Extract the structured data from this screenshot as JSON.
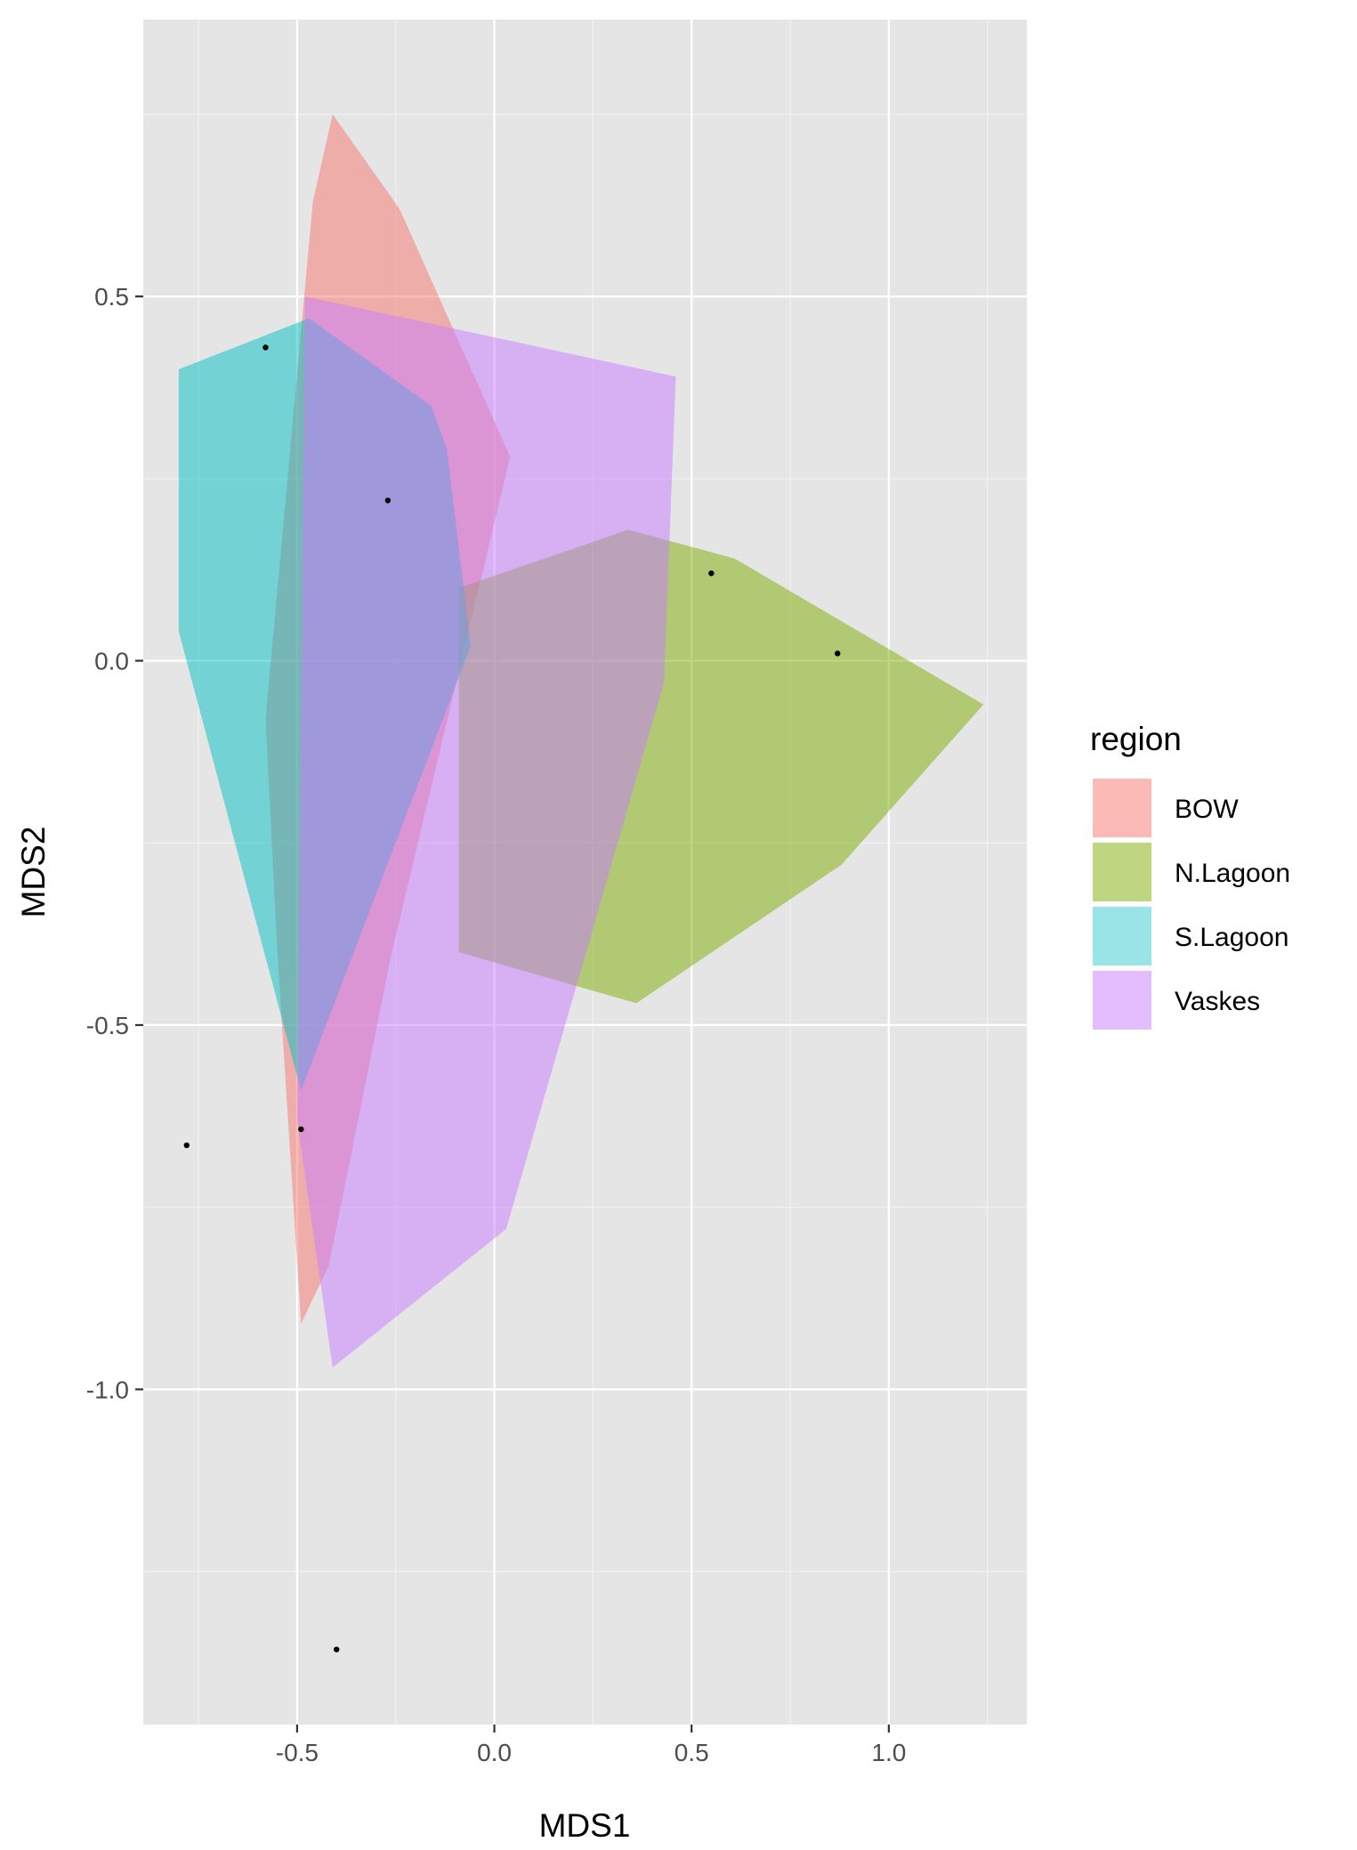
{
  "chart_data": {
    "type": "scatter",
    "xlabel": "MDS1",
    "ylabel": "MDS2",
    "xlim": [
      -0.89,
      1.35
    ],
    "ylim": [
      -1.46,
      0.88
    ],
    "x_ticks": [
      -0.5,
      0.0,
      0.5,
      1.0
    ],
    "x_tick_labels": [
      "-0.5",
      "0.0",
      "0.5",
      "1.0"
    ],
    "y_ticks": [
      0.5,
      0.0,
      -0.5,
      -1.0
    ],
    "y_tick_labels": [
      "0.5",
      "0.0",
      "-0.5",
      "-1.0"
    ],
    "grid": true,
    "background": "#e5e5e5",
    "legend": {
      "title": "region",
      "position": "right",
      "entries": [
        "BOW",
        "N.Lagoon",
        "S.Lagoon",
        "Vaskes"
      ]
    },
    "series": [
      {
        "name": "BOW",
        "color": "#f8766d",
        "hull": [
          [
            -0.41,
            0.75
          ],
          [
            -0.24,
            0.62
          ],
          [
            0.04,
            0.28
          ],
          [
            -0.26,
            -0.4
          ],
          [
            -0.42,
            -0.83
          ],
          [
            -0.49,
            -0.91
          ],
          [
            -0.55,
            -0.4
          ],
          [
            -0.58,
            -0.08
          ],
          [
            -0.46,
            0.63
          ]
        ]
      },
      {
        "name": "N.Lagoon",
        "color": "#7cae00",
        "hull": [
          [
            0.34,
            0.18
          ],
          [
            0.61,
            0.14
          ],
          [
            1.24,
            -0.06
          ],
          [
            0.88,
            -0.28
          ],
          [
            0.36,
            -0.47
          ],
          [
            -0.09,
            -0.4
          ],
          [
            -0.09,
            0.1
          ]
        ]
      },
      {
        "name": "S.Lagoon",
        "color": "#00bfc4",
        "hull": [
          [
            -0.8,
            0.4
          ],
          [
            -0.47,
            0.47
          ],
          [
            -0.16,
            0.35
          ],
          [
            -0.12,
            0.29
          ],
          [
            -0.06,
            0.02
          ],
          [
            -0.49,
            -0.59
          ],
          [
            -0.8,
            0.04
          ]
        ]
      },
      {
        "name": "Vaskes",
        "color": "#c77cff",
        "hull": [
          [
            -0.48,
            0.5
          ],
          [
            0.46,
            0.39
          ],
          [
            0.43,
            -0.03
          ],
          [
            0.03,
            -0.78
          ],
          [
            -0.41,
            -0.97
          ],
          [
            -0.5,
            -0.63
          ]
        ]
      }
    ],
    "points": [
      {
        "x": -0.58,
        "y": 0.43
      },
      {
        "x": -0.27,
        "y": 0.22
      },
      {
        "x": 0.55,
        "y": 0.12
      },
      {
        "x": 0.87,
        "y": 0.01
      },
      {
        "x": -0.78,
        "y": -0.665
      },
      {
        "x": -0.49,
        "y": -0.643
      },
      {
        "x": -0.4,
        "y": -1.357
      }
    ]
  }
}
